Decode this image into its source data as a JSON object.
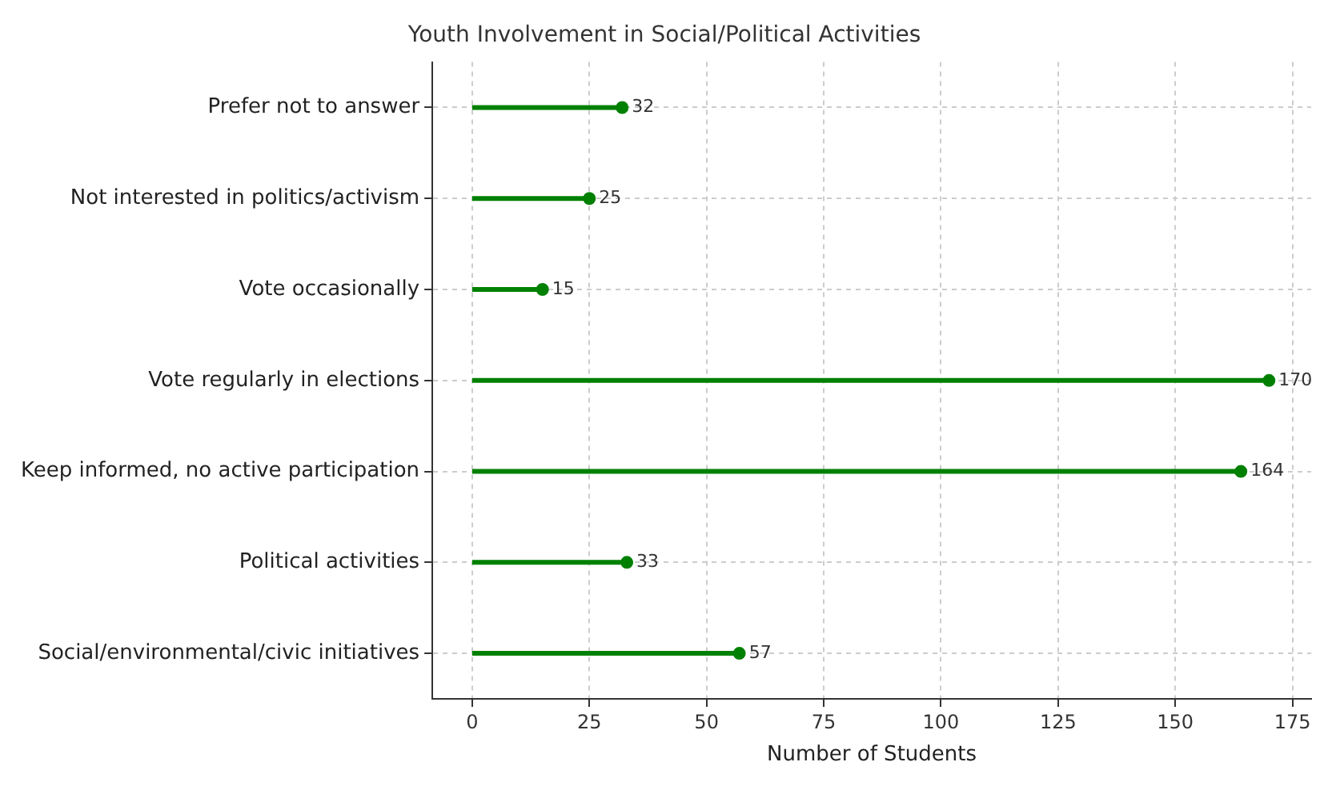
{
  "chart_data": {
    "type": "lollipop",
    "orientation": "horizontal",
    "title": "Youth Involvement in Social/Political Activities",
    "xlabel": "Number of Students",
    "categories": [
      "Prefer not to answer",
      "Not interested in politics/activism",
      "Vote occasionally",
      "Vote regularly in elections",
      "Keep informed, no active participation",
      "Political activities",
      "Social/environmental/civic initiatives"
    ],
    "values": [
      32,
      25,
      15,
      170,
      164,
      33,
      57
    ],
    "color": "#008000",
    "marker": "circle",
    "data_labels": true,
    "grid": true,
    "xlim": [
      -8.5,
      179
    ],
    "xticks": [
      0,
      25,
      50,
      75,
      100,
      125,
      150,
      175
    ]
  }
}
